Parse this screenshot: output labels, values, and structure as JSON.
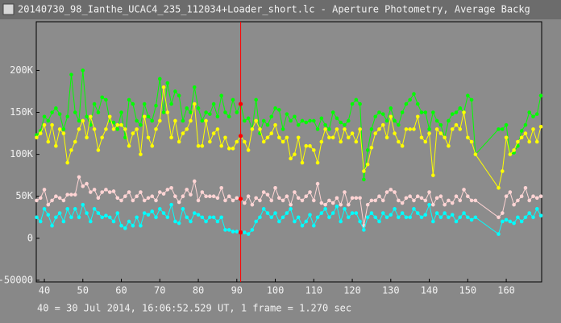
{
  "window_title": "20140730_98_Ianthe_UCAC4_235_112034+Loader_short.lc - Aperture Photometry, Average Backg",
  "chart_data": {
    "type": "line",
    "footer": "40 = 30 Jul 2014, 16:06:52.529 UT, 1 frame = 1.270 sec",
    "xlim": [
      37.9,
      169.2
    ],
    "ylim": [
      -52000,
      258000
    ],
    "xticks": [
      40,
      50,
      60,
      70,
      80,
      90,
      100,
      110,
      120,
      130,
      140,
      150,
      160
    ],
    "yticks": [
      {
        "value": -50000,
        "label": "-50000"
      },
      0,
      {
        "value": 50000,
        "label": "50K"
      },
      {
        "value": 100000,
        "label": "100K"
      },
      {
        "value": 150000,
        "label": "150K"
      },
      {
        "value": 200000,
        "label": "200K"
      }
    ],
    "grid": false,
    "cursor_x": 91,
    "cursor_color": "#ff0000",
    "x": [
      38,
      39,
      40,
      41,
      42,
      43,
      44,
      45,
      46,
      47,
      48,
      49,
      50,
      51,
      52,
      53,
      54,
      55,
      56,
      57,
      58,
      59,
      60,
      61,
      62,
      63,
      64,
      65,
      66,
      67,
      68,
      69,
      70,
      71,
      72,
      73,
      74,
      75,
      76,
      77,
      78,
      79,
      80,
      81,
      82,
      83,
      84,
      85,
      86,
      87,
      88,
      89,
      90,
      91,
      92,
      93,
      94,
      95,
      96,
      97,
      98,
      99,
      100,
      101,
      102,
      103,
      104,
      105,
      106,
      107,
      108,
      109,
      110,
      111,
      112,
      113,
      114,
      115,
      116,
      117,
      118,
      119,
      120,
      121,
      122,
      123,
      124,
      125,
      126,
      127,
      128,
      129,
      130,
      131,
      132,
      133,
      134,
      135,
      136,
      137,
      138,
      139,
      140,
      141,
      142,
      143,
      144,
      145,
      146,
      147,
      148,
      149,
      150,
      151,
      152,
      158,
      159,
      160,
      161,
      162,
      163,
      164,
      165,
      166,
      167,
      168,
      169
    ],
    "series": [
      {
        "color": "#00ff00",
        "values": [
          123000,
          128000,
          145000,
          140000,
          150000,
          155000,
          148000,
          130000,
          145000,
          195000,
          150000,
          140000,
          200000,
          145000,
          135000,
          160000,
          150000,
          168000,
          165000,
          140000,
          138000,
          130000,
          150000,
          120000,
          165000,
          160000,
          140000,
          135000,
          160000,
          145000,
          140000,
          158000,
          190000,
          150000,
          185000,
          160000,
          175000,
          170000,
          140000,
          155000,
          150000,
          180000,
          155000,
          140000,
          150000,
          148000,
          160000,
          145000,
          170000,
          150000,
          145000,
          165000,
          150000,
          160000,
          140000,
          143000,
          130000,
          165000,
          125000,
          140000,
          135000,
          145000,
          155000,
          153000,
          130000,
          148000,
          140000,
          145000,
          135000,
          140000,
          138000,
          140000,
          140000,
          130000,
          143000,
          135000,
          130000,
          150000,
          143000,
          138000,
          135000,
          140000,
          160000,
          165000,
          160000,
          70000,
          105000,
          130000,
          145000,
          150000,
          148000,
          140000,
          155000,
          140000,
          135000,
          150000,
          160000,
          165000,
          172000,
          160000,
          150000,
          150000,
          130000,
          150000,
          140000,
          135000,
          120000,
          140000,
          148000,
          150000,
          155000,
          150000,
          170000,
          165000,
          100000,
          130000,
          130000,
          135000,
          100000,
          102000,
          110000,
          128000,
          135000,
          150000,
          145000,
          148000,
          170000
        ]
      },
      {
        "color": "#ffff00",
        "values": [
          120000,
          125000,
          135000,
          115000,
          135000,
          110000,
          130000,
          125000,
          90000,
          105000,
          115000,
          130000,
          140000,
          120000,
          145000,
          130000,
          105000,
          120000,
          130000,
          145000,
          130000,
          135000,
          135000,
          130000,
          110000,
          125000,
          130000,
          100000,
          145000,
          120000,
          110000,
          130000,
          140000,
          180000,
          150000,
          120000,
          140000,
          115000,
          125000,
          130000,
          140000,
          160000,
          110000,
          110000,
          140000,
          115000,
          125000,
          130000,
          110000,
          120000,
          107000,
          107000,
          115000,
          122000,
          115000,
          105000,
          130000,
          140000,
          130000,
          115000,
          120000,
          125000,
          135000,
          120000,
          115000,
          120000,
          95000,
          100000,
          120000,
          90000,
          110000,
          110000,
          105000,
          90000,
          115000,
          130000,
          120000,
          120000,
          130000,
          115000,
          130000,
          120000,
          125000,
          115000,
          130000,
          80000,
          88000,
          108000,
          125000,
          130000,
          135000,
          120000,
          145000,
          125000,
          115000,
          110000,
          130000,
          130000,
          130000,
          145000,
          120000,
          115000,
          125000,
          75000,
          130000,
          125000,
          120000,
          110000,
          130000,
          135000,
          130000,
          150000,
          120000,
          115000,
          100000,
          60000,
          80000,
          120000,
          100000,
          105000,
          115000,
          120000,
          125000,
          115000,
          130000,
          115000,
          133000
        ]
      },
      {
        "color": "#ffd4d4",
        "values": [
          45000,
          48000,
          58000,
          40000,
          45000,
          50000,
          48000,
          45000,
          52000,
          52000,
          52000,
          73000,
          62000,
          65000,
          55000,
          58000,
          48000,
          55000,
          58000,
          55000,
          56000,
          48000,
          45000,
          50000,
          55000,
          45000,
          50000,
          55000,
          45000,
          48000,
          50000,
          45000,
          55000,
          53000,
          58000,
          60000,
          50000,
          43000,
          50000,
          58000,
          52000,
          68000,
          45000,
          55000,
          50000,
          50000,
          50000,
          48000,
          60000,
          45000,
          50000,
          45000,
          48000,
          47000,
          42000,
          50000,
          40000,
          48000,
          45000,
          55000,
          52000,
          45000,
          60000,
          48000,
          45000,
          50000,
          40000,
          55000,
          48000,
          45000,
          50000,
          55000,
          45000,
          65000,
          42000,
          40000,
          45000,
          42000,
          48000,
          40000,
          55000,
          40000,
          48000,
          48000,
          48000,
          15000,
          40000,
          45000,
          45000,
          50000,
          45000,
          55000,
          58000,
          55000,
          45000,
          42000,
          48000,
          50000,
          45000,
          50000,
          48000,
          45000,
          55000,
          40000,
          48000,
          50000,
          40000,
          45000,
          42000,
          50000,
          45000,
          58000,
          50000,
          45000,
          45000,
          25000,
          30000,
          50000,
          55000,
          40000,
          45000,
          50000,
          60000,
          45000,
          50000,
          48000,
          50000
        ]
      },
      {
        "color": "#00ffff",
        "values": [
          25000,
          20000,
          35000,
          28000,
          15000,
          25000,
          30000,
          20000,
          35000,
          25000,
          35000,
          25000,
          40000,
          30000,
          20000,
          35000,
          30000,
          25000,
          27000,
          25000,
          20000,
          30000,
          15000,
          12000,
          20000,
          15000,
          25000,
          15000,
          30000,
          28000,
          32000,
          25000,
          35000,
          30000,
          25000,
          40000,
          20000,
          18000,
          35000,
          25000,
          20000,
          30000,
          28000,
          25000,
          20000,
          25000,
          25000,
          20000,
          25000,
          10000,
          10000,
          8000,
          8000,
          7000,
          7000,
          5000,
          10000,
          20000,
          25000,
          35000,
          30000,
          25000,
          30000,
          20000,
          25000,
          30000,
          35000,
          20000,
          25000,
          15000,
          20000,
          28000,
          15000,
          25000,
          30000,
          35000,
          25000,
          30000,
          38000,
          20000,
          35000,
          25000,
          30000,
          30000,
          20000,
          10000,
          25000,
          30000,
          25000,
          20000,
          30000,
          25000,
          28000,
          35000,
          25000,
          30000,
          25000,
          25000,
          35000,
          30000,
          25000,
          28000,
          40000,
          20000,
          30000,
          25000,
          30000,
          25000,
          28000,
          20000,
          25000,
          30000,
          25000,
          22000,
          25000,
          5000,
          20000,
          22000,
          20000,
          18000,
          25000,
          20000,
          25000,
          30000,
          25000,
          35000,
          27000
        ]
      }
    ]
  }
}
